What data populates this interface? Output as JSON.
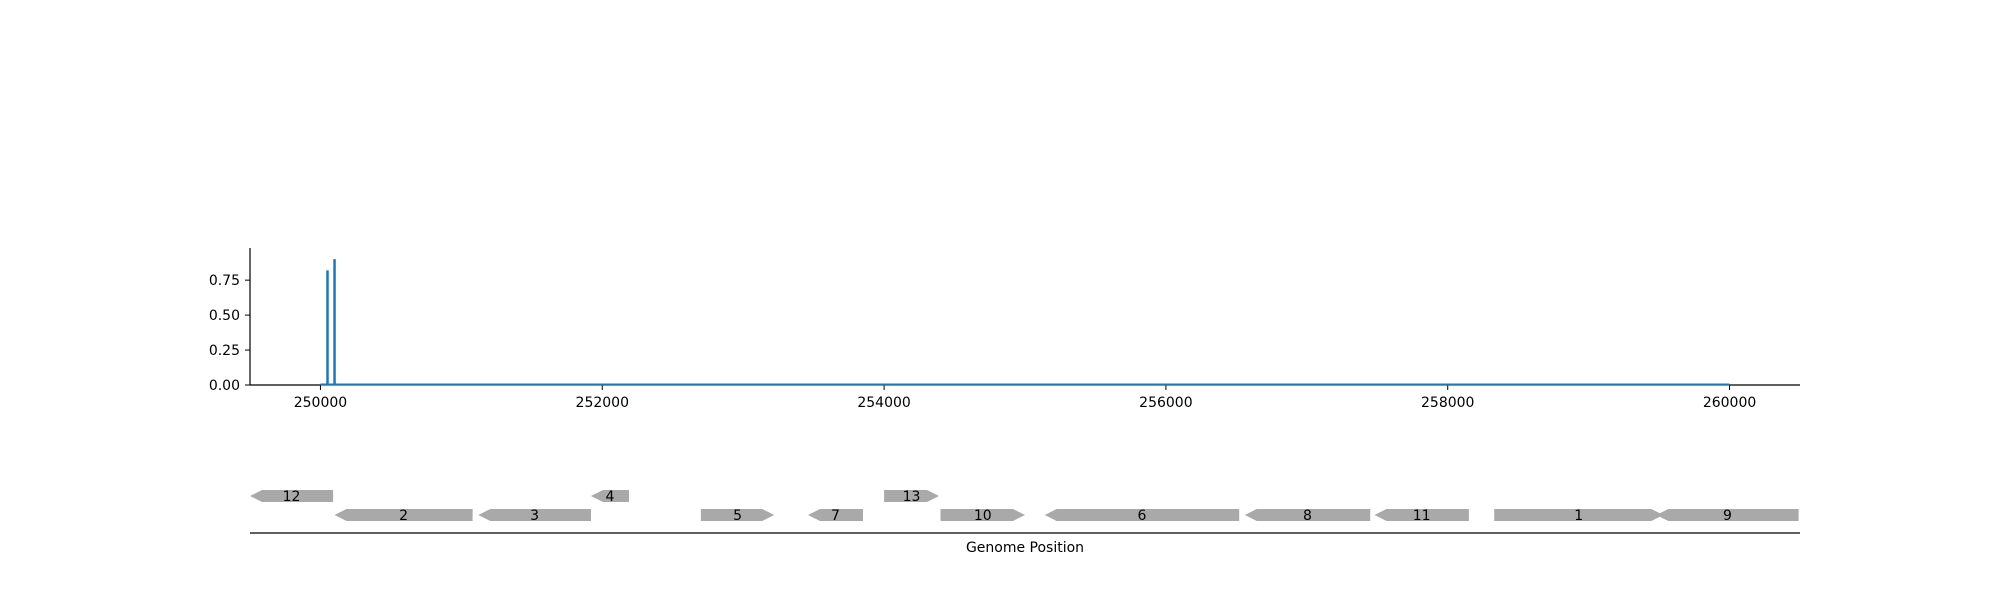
{
  "colors": {
    "signal": "#1f77b4",
    "gene": "#a9a9a9",
    "axis": "#000000"
  },
  "chart_data": [
    {
      "type": "bar",
      "x": [
        250050,
        250100
      ],
      "values": [
        0.82,
        0.9
      ],
      "baseline_range": [
        250000,
        260000
      ],
      "xlim": [
        249500,
        260500
      ],
      "ylim": [
        0,
        0.98
      ],
      "xticks": [
        250000,
        252000,
        254000,
        256000,
        258000,
        260000
      ],
      "xtick_labels": [
        "250000",
        "252000",
        "254000",
        "256000",
        "258000",
        "260000"
      ],
      "yticks": [
        0,
        0.25,
        0.5,
        0.75
      ],
      "ytick_labels": [
        "0.00",
        "0.25",
        "0.50",
        "0.75"
      ],
      "title": "",
      "xlabel": "",
      "ylabel": ""
    },
    {
      "type": "gene_track",
      "xlim": [
        249500,
        260500
      ],
      "xlabel": "Genome Position",
      "genes": [
        {
          "label": "12",
          "start": 249500,
          "end": 250090,
          "strand": "-",
          "row": 1
        },
        {
          "label": "2",
          "start": 250100,
          "end": 251080,
          "strand": "-",
          "row": 0
        },
        {
          "label": "3",
          "start": 251120,
          "end": 251920,
          "strand": "-",
          "row": 0
        },
        {
          "label": "4",
          "start": 251920,
          "end": 252190,
          "strand": "-",
          "row": 1
        },
        {
          "label": "5",
          "start": 252700,
          "end": 253220,
          "strand": "+",
          "row": 0
        },
        {
          "label": "7",
          "start": 253460,
          "end": 253850,
          "strand": "-",
          "row": 0
        },
        {
          "label": "13",
          "start": 254000,
          "end": 254390,
          "strand": "+",
          "row": 1
        },
        {
          "label": "10",
          "start": 254400,
          "end": 255000,
          "strand": "+",
          "row": 0
        },
        {
          "label": "6",
          "start": 255140,
          "end": 256520,
          "strand": "-",
          "row": 0
        },
        {
          "label": "8",
          "start": 256560,
          "end": 257450,
          "strand": "-",
          "row": 0
        },
        {
          "label": "11",
          "start": 257480,
          "end": 258150,
          "strand": "-",
          "row": 0
        },
        {
          "label": "1",
          "start": 258330,
          "end": 259530,
          "strand": "+",
          "row": 0
        },
        {
          "label": "9",
          "start": 259480,
          "end": 260490,
          "strand": "-",
          "row": 0
        }
      ]
    }
  ]
}
